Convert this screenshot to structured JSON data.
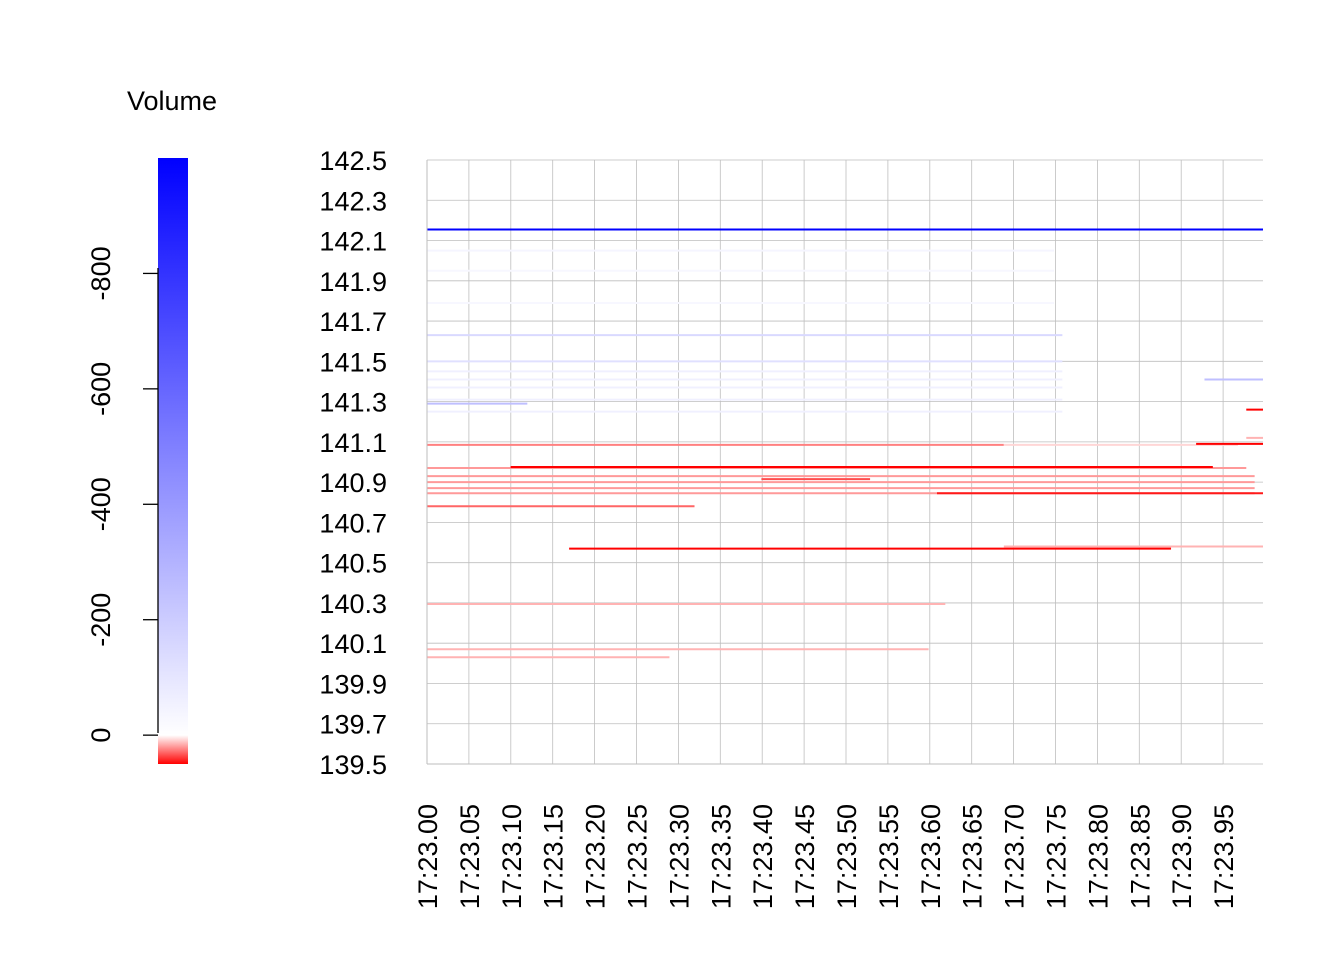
{
  "chart_data": {
    "type": "heatmap",
    "subtype": "order-book level lines",
    "title": "",
    "xlabel": "",
    "ylabel": "",
    "ylim": [
      139.5,
      142.5
    ],
    "xlim": [
      0.0,
      1.0
    ],
    "grid": true,
    "x_ticks": [
      "17:23.00",
      "17:23.05",
      "17:23.10",
      "17:23.15",
      "17:23.20",
      "17:23.25",
      "17:23.30",
      "17:23.35",
      "17:23.40",
      "17:23.45",
      "17:23.50",
      "17:23.55",
      "17:23.60",
      "17:23.65",
      "17:23.70",
      "17:23.75",
      "17:23.80",
      "17:23.85",
      "17:23.90",
      "17:23.95"
    ],
    "y_ticks": [
      "139.5",
      "139.7",
      "139.9",
      "140.1",
      "140.3",
      "140.5",
      "140.7",
      "140.9",
      "141.1",
      "141.3",
      "141.5",
      "141.7",
      "141.9",
      "142.1",
      "142.3",
      "142.5"
    ],
    "legend": {
      "title": "Volume",
      "placement": "left",
      "ticks": [
        "0",
        "-200",
        "-400",
        "-600",
        "-800"
      ],
      "tick_values": [
        0,
        -200,
        -400,
        -600,
        -800
      ],
      "range": [
        -1000,
        50
      ],
      "color_negative": "#0000ff",
      "color_zero": "#ffffff",
      "color_positive": "#ff0000"
    },
    "colors": {
      "blue": "#0000ff",
      "red": "#ff0000",
      "grid": "#bebebe"
    },
    "segments": [
      {
        "price": 142.155,
        "x0": 0.0,
        "x1": 1.0,
        "volume": -1000
      },
      {
        "price": 142.05,
        "x0": 0.0,
        "x1": 0.75,
        "volume": -40
      },
      {
        "price": 141.95,
        "x0": 0.0,
        "x1": 0.75,
        "volume": -30
      },
      {
        "price": 141.79,
        "x0": 0.0,
        "x1": 0.75,
        "volume": -30
      },
      {
        "price": 141.63,
        "x0": 0.0,
        "x1": 0.76,
        "volume": -150
      },
      {
        "price": 141.5,
        "x0": 0.0,
        "x1": 0.76,
        "volume": -120
      },
      {
        "price": 141.45,
        "x0": 0.0,
        "x1": 0.76,
        "volume": -60
      },
      {
        "price": 141.41,
        "x0": 0.0,
        "x1": 0.76,
        "volume": -60
      },
      {
        "price": 141.37,
        "x0": 0.0,
        "x1": 0.76,
        "volume": -60
      },
      {
        "price": 141.31,
        "x0": 0.0,
        "x1": 0.76,
        "volume": -60
      },
      {
        "price": 141.29,
        "x0": 0.0,
        "x1": 0.12,
        "volume": -250
      },
      {
        "price": 141.25,
        "x0": 0.0,
        "x1": 0.76,
        "volume": -60
      },
      {
        "price": 141.41,
        "x0": 0.93,
        "x1": 1.0,
        "volume": -250
      },
      {
        "price": 141.085,
        "x0": 0.0,
        "x1": 0.69,
        "volume": 25
      },
      {
        "price": 141.085,
        "x0": 0.69,
        "x1": 0.97,
        "volume": 8
      },
      {
        "price": 141.09,
        "x0": 0.92,
        "x1": 1.0,
        "volume": 50
      },
      {
        "price": 141.26,
        "x0": 0.98,
        "x1": 1.0,
        "volume": 50
      },
      {
        "price": 141.12,
        "x0": 0.98,
        "x1": 1.0,
        "volume": 15
      },
      {
        "price": 140.97,
        "x0": 0.0,
        "x1": 0.98,
        "volume": 20
      },
      {
        "price": 140.975,
        "x0": 0.1,
        "x1": 0.94,
        "volume": 50
      },
      {
        "price": 140.93,
        "x0": 0.0,
        "x1": 0.99,
        "volume": 20
      },
      {
        "price": 140.915,
        "x0": 0.4,
        "x1": 0.53,
        "volume": 35
      },
      {
        "price": 140.9,
        "x0": 0.0,
        "x1": 0.99,
        "volume": 20
      },
      {
        "price": 140.87,
        "x0": 0.0,
        "x1": 0.99,
        "volume": 20
      },
      {
        "price": 140.845,
        "x0": 0.0,
        "x1": 0.99,
        "volume": 20
      },
      {
        "price": 140.845,
        "x0": 0.61,
        "x1": 1.0,
        "volume": 45
      },
      {
        "price": 140.78,
        "x0": 0.0,
        "x1": 0.32,
        "volume": 30
      },
      {
        "price": 140.58,
        "x0": 0.69,
        "x1": 1.0,
        "volume": 15
      },
      {
        "price": 140.57,
        "x0": 0.17,
        "x1": 0.89,
        "volume": 50
      },
      {
        "price": 140.295,
        "x0": 0.0,
        "x1": 0.62,
        "volume": 15
      },
      {
        "price": 140.07,
        "x0": 0.0,
        "x1": 0.6,
        "volume": 15
      },
      {
        "price": 140.03,
        "x0": 0.0,
        "x1": 0.29,
        "volume": 15
      }
    ]
  }
}
